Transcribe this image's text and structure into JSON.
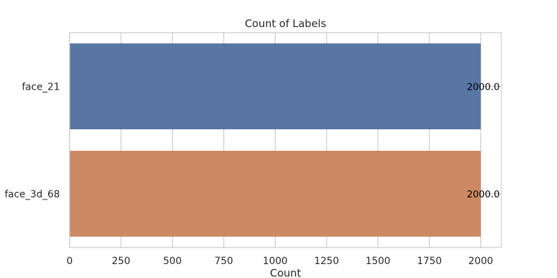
{
  "chart_data": {
    "type": "bar",
    "orientation": "horizontal",
    "title": "Count of Labels",
    "xlabel": "Count",
    "ylabel": "",
    "categories": [
      "face_21",
      "face_3d_68"
    ],
    "values": [
      2000,
      2000
    ],
    "data_labels": [
      "2000.0",
      "2000.0"
    ],
    "xlim": [
      0,
      2100
    ],
    "xticks": [
      0,
      250,
      500,
      750,
      1000,
      1250,
      1500,
      1750,
      2000
    ],
    "xtick_labels": [
      "0",
      "250",
      "500",
      "750",
      "1000",
      "1250",
      "1500",
      "1750",
      "2000"
    ],
    "grid": true,
    "legend": "none",
    "colors": [
      "#5975a4",
      "#cc8963"
    ],
    "grid_color": "#cccccc",
    "spine_color": "#cccccc"
  }
}
